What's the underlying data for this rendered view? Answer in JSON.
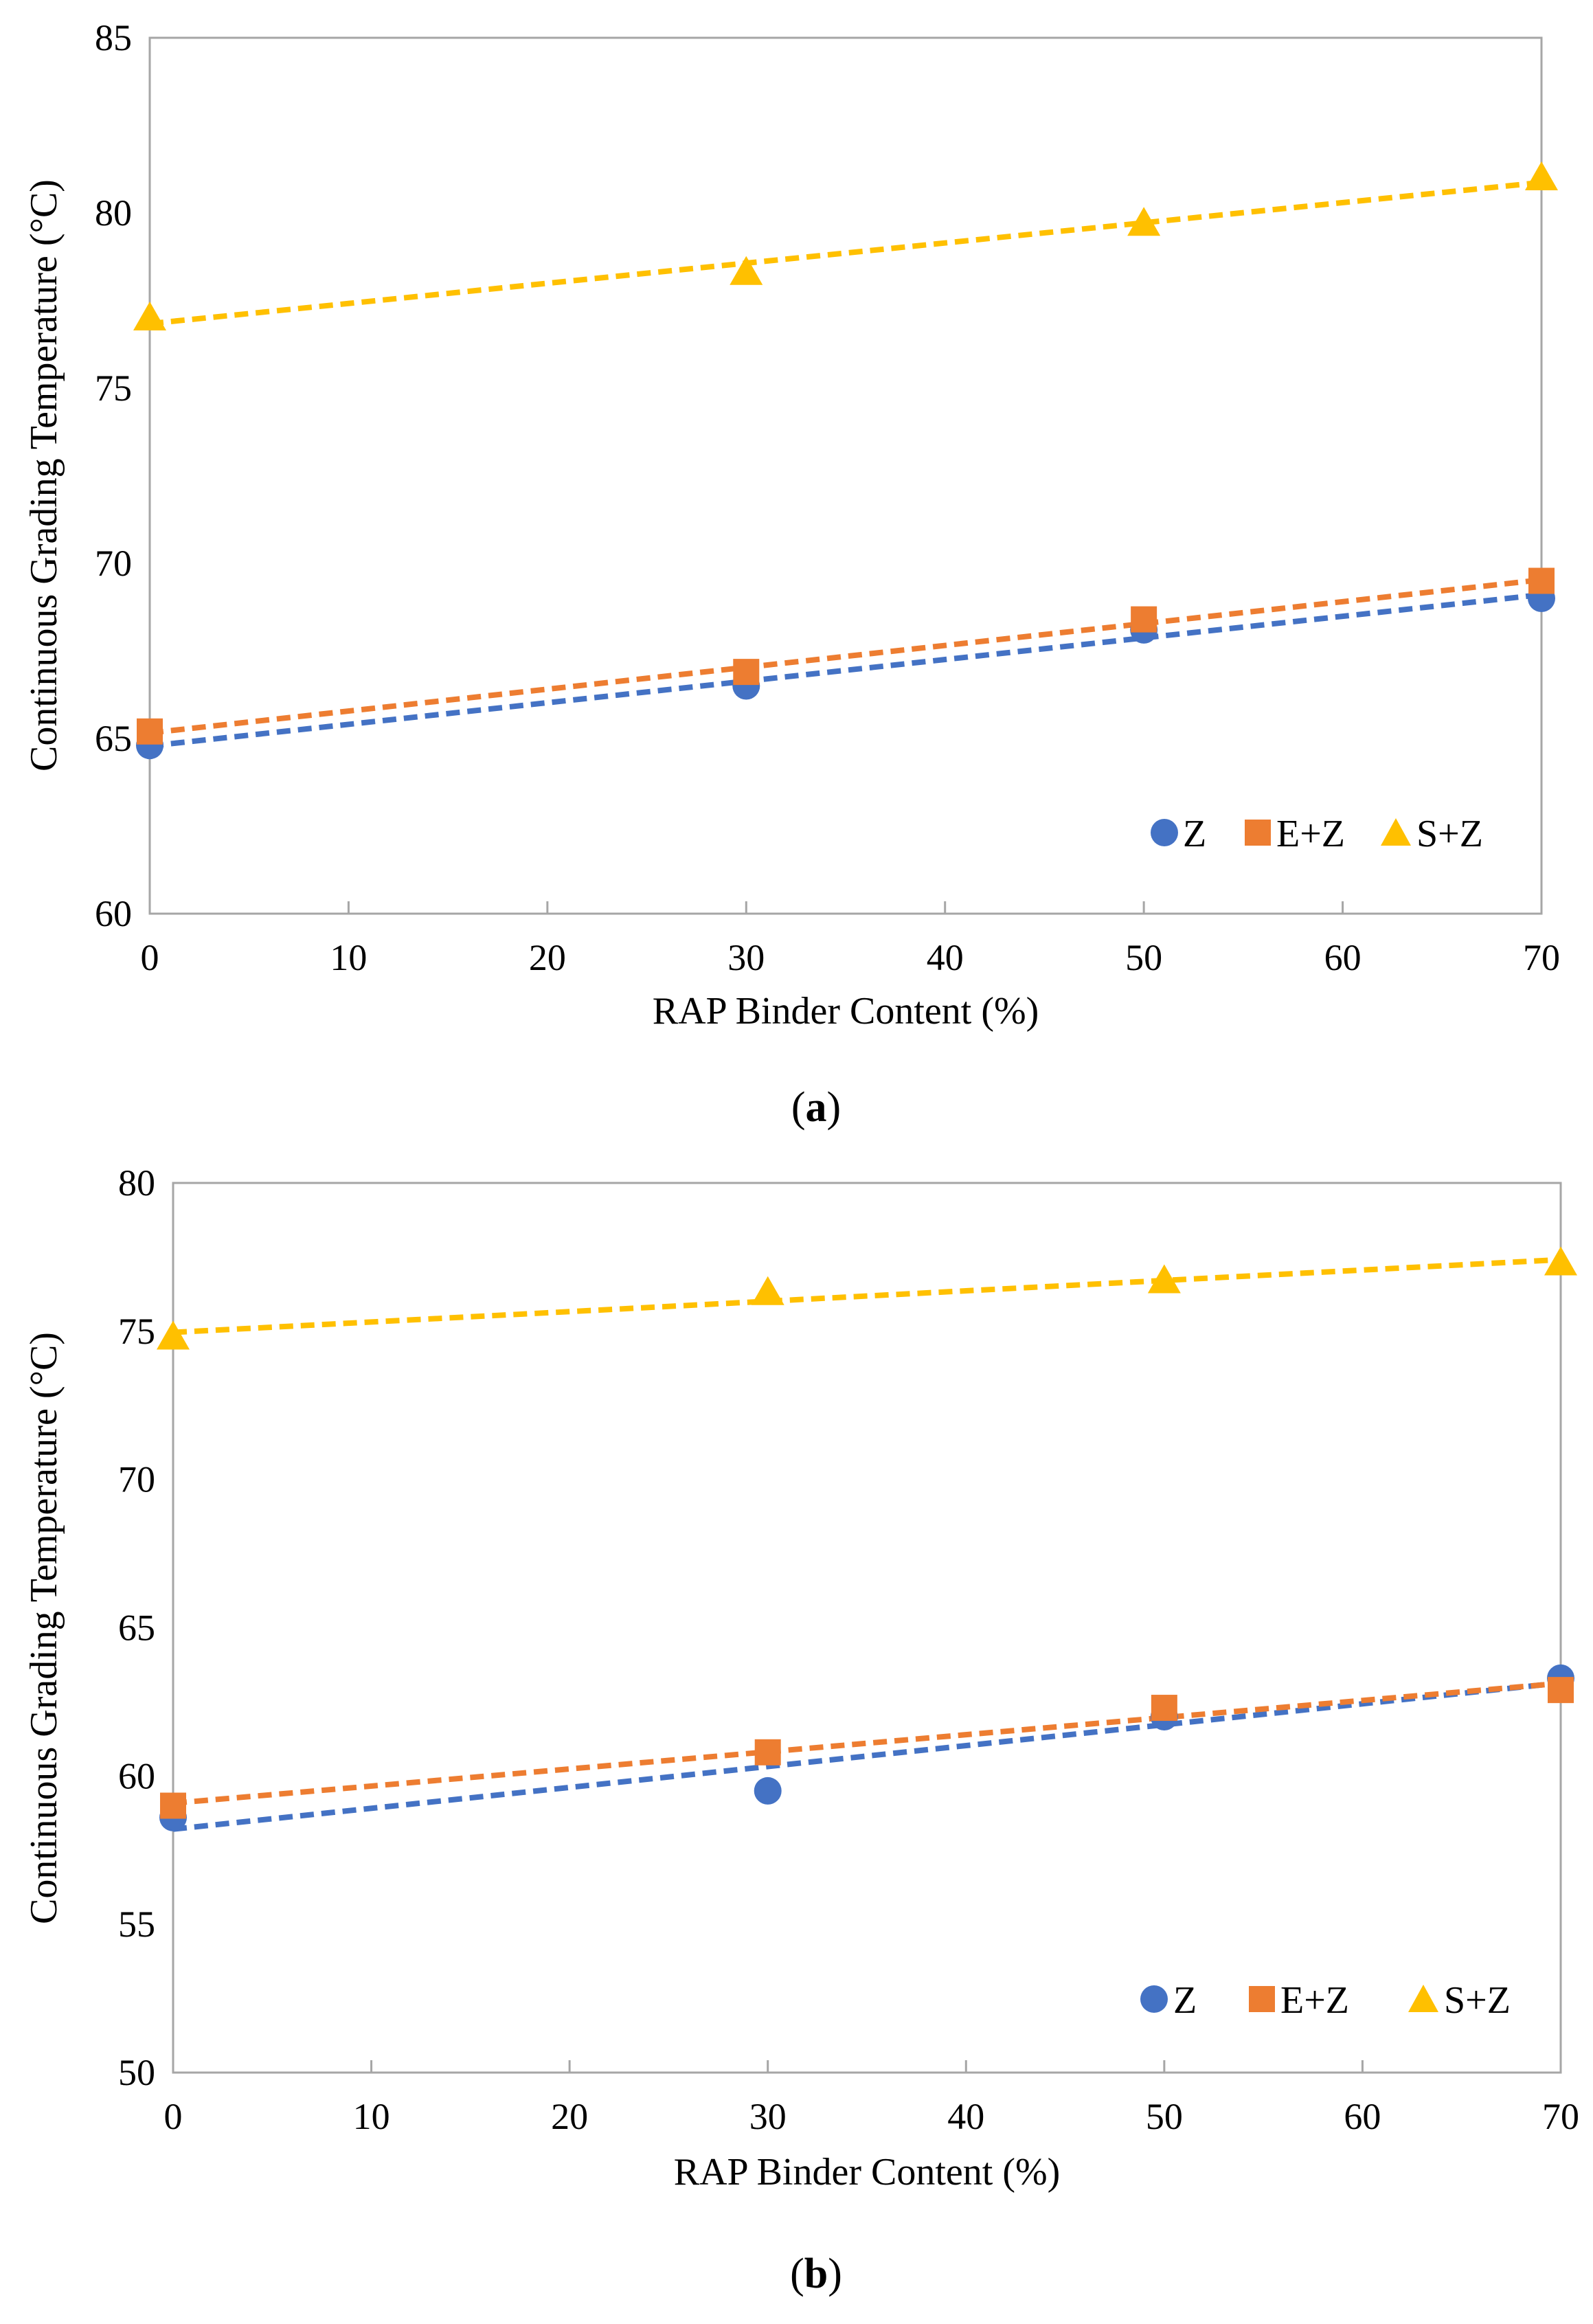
{
  "colors": {
    "Z": "#4472C4",
    "E+Z": "#ED7D31",
    "S+Z": "#FFC000"
  },
  "legend_markers": {
    "Z": "circle",
    "E+Z": "square",
    "S+Z": "triangle"
  },
  "chart_data": [
    {
      "type": "scatter",
      "panel_label": {
        "open": "(",
        "letter": "a",
        "close": ")"
      },
      "xlabel": "RAP Binder Content (%)",
      "ylabel": "Continuous Grading Temperature (°C)",
      "xlim": [
        0,
        70
      ],
      "ylim": [
        60,
        85
      ],
      "xticks": [
        "0",
        "10",
        "20",
        "30",
        "40",
        "50",
        "60",
        "70"
      ],
      "yticks": [
        "60",
        "65",
        "70",
        "75",
        "80",
        "85"
      ],
      "grid": false,
      "legend": "bottom-right",
      "trendline": "linear",
      "x": [
        0,
        30,
        50,
        70
      ],
      "series": [
        {
          "name": "Z",
          "values": [
            64.8,
            66.5,
            68.1,
            69.0
          ]
        },
        {
          "name": "E+Z",
          "values": [
            65.2,
            66.9,
            68.4,
            69.5
          ]
        },
        {
          "name": "S+Z",
          "values": [
            77.0,
            78.3,
            79.7,
            81.0
          ]
        }
      ]
    },
    {
      "type": "scatter",
      "panel_label": {
        "open": "(",
        "letter": "b",
        "close": ")"
      },
      "xlabel": "RAP Binder Content (%)",
      "ylabel": "Continuous Grading Temperature (°C)",
      "xlim": [
        0,
        70
      ],
      "ylim": [
        50,
        80
      ],
      "xticks": [
        "0",
        "10",
        "20",
        "30",
        "40",
        "50",
        "60",
        "70"
      ],
      "yticks": [
        "50",
        "55",
        "60",
        "65",
        "70",
        "75",
        "80"
      ],
      "grid": false,
      "legend": "bottom-right",
      "trendline": "linear",
      "x": [
        0,
        30,
        50,
        70
      ],
      "series": [
        {
          "name": "Z",
          "values": [
            58.6,
            59.5,
            62.0,
            63.3
          ]
        },
        {
          "name": "E+Z",
          "values": [
            59.0,
            60.8,
            62.3,
            62.9
          ]
        },
        {
          "name": "S+Z",
          "values": [
            74.8,
            76.3,
            76.7,
            77.3
          ]
        }
      ]
    }
  ]
}
